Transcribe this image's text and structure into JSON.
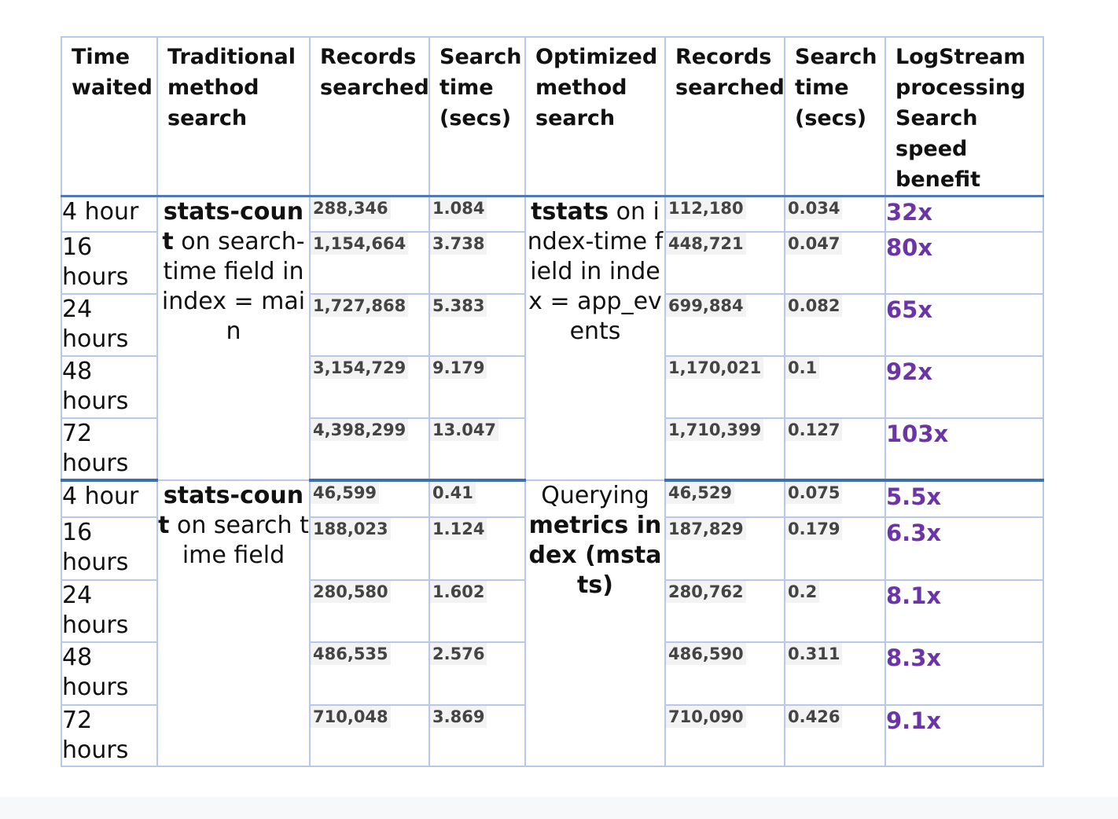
{
  "table": {
    "headers": [
      "Time waited",
      "Traditional method search",
      "Records searched",
      "Search time (secs)",
      "Optimized method search",
      "Records searched",
      "Search time (secs)",
      "LogStream processing Search speed benefit"
    ],
    "groups": [
      {
        "traditional_strong": "stats-count",
        "traditional_rest": " on search-time field in index = main",
        "optimized_pre": "",
        "optimized_strong": "tstats",
        "optimized_rest": " on index-time field in index = app_events",
        "rows": [
          {
            "time": "4 hour",
            "trad_records": "288,346",
            "trad_secs": "1.084",
            "opt_records": "112,180",
            "opt_secs": "0.034",
            "benefit": "32x"
          },
          {
            "time": "16 hours",
            "trad_records": "1,154,664",
            "trad_secs": "3.738",
            "opt_records": "448,721",
            "opt_secs": "0.047",
            "benefit": "80x"
          },
          {
            "time": "24 hours",
            "trad_records": "1,727,868",
            "trad_secs": "5.383",
            "opt_records": "699,884",
            "opt_secs": "0.082",
            "benefit": "65x"
          },
          {
            "time": "48 hours",
            "trad_records": "3,154,729",
            "trad_secs": "9.179",
            "opt_records": "1,170,021",
            "opt_secs": "0.1",
            "benefit": "92x"
          },
          {
            "time": "72 hours",
            "trad_records": "4,398,299",
            "trad_secs": "13.047",
            "opt_records": "1,710,399",
            "opt_secs": "0.127",
            "benefit": "103x"
          }
        ]
      },
      {
        "traditional_strong": "stats-count",
        "traditional_rest": " on search time field",
        "optimized_pre": "Querying ",
        "optimized_strong": "metrics index (mstats)",
        "optimized_rest": "",
        "rows": [
          {
            "time": "4 hour",
            "trad_records": "46,599",
            "trad_secs": "0.41",
            "opt_records": "46,529",
            "opt_secs": "0.075",
            "benefit": "5.5x"
          },
          {
            "time": "16 hours",
            "trad_records": "188,023",
            "trad_secs": "1.124",
            "opt_records": "187,829",
            "opt_secs": "0.179",
            "benefit": "6.3x"
          },
          {
            "time": "24 hours",
            "trad_records": "280,580",
            "trad_secs": "1.602",
            "opt_records": "280,762",
            "opt_secs": "0.2",
            "benefit": "8.1x"
          },
          {
            "time": "48 hours",
            "trad_records": "486,535",
            "trad_secs": "2.576",
            "opt_records": "486,590",
            "opt_secs": "0.311",
            "benefit": "8.3x"
          },
          {
            "time": "72 hours",
            "trad_records": "710,048",
            "trad_secs": "3.869",
            "opt_records": "710,090",
            "opt_secs": "0.426",
            "benefit": "9.1x"
          }
        ]
      }
    ]
  },
  "colors": {
    "grid_border": "#b7c9e6",
    "group_divider": "#3d6db3",
    "benefit_text": "#6b35a8",
    "number_highlight": "#f3f3f3"
  }
}
